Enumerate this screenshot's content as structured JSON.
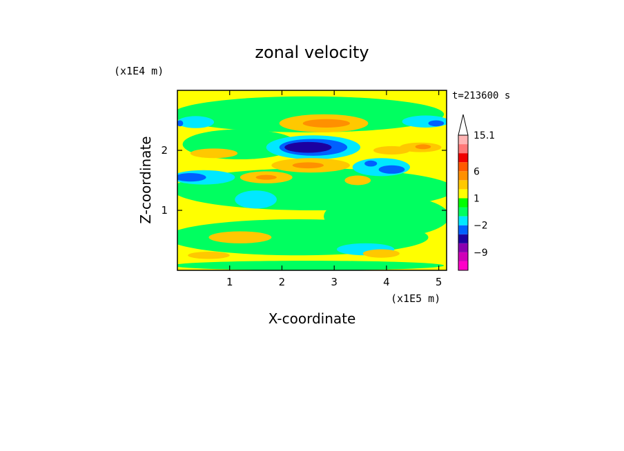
{
  "chart_data": {
    "type": "heatmap",
    "title": "zonal velocity",
    "xlabel": "X-coordinate",
    "ylabel": "Z-coordinate",
    "x_unit": "(x1E5 m)",
    "y_unit": "(x1E4 m)",
    "time_label": "t=213600 s",
    "xlim": [
      0,
      5.15
    ],
    "ylim": [
      0,
      3.0
    ],
    "x_ticks": [
      1,
      2,
      3,
      4,
      5
    ],
    "y_ticks": [
      1,
      2
    ],
    "background_color": "#ffff00",
    "colorbar": {
      "levels_low_to_high": [
        -15,
        -12,
        -9,
        -6,
        -3,
        -2,
        -1,
        0,
        1,
        2,
        3,
        6,
        9,
        12,
        15.1
      ],
      "colors_low_to_high": [
        "#ff00c8",
        "#d000b8",
        "#8a00b0",
        "#1c00a0",
        "#0060ff",
        "#00e8ff",
        "#00ff60",
        "#00ff00",
        "#ffff00",
        "#ffc800",
        "#ff9000",
        "#ff5a00",
        "#f00000",
        "#ff7878",
        "#ffb4b4"
      ],
      "tick_labels": [
        "15.1",
        "6",
        "1",
        "−2",
        "−9"
      ],
      "extend": "max"
    },
    "features": [
      {
        "kind": "green band",
        "x": 2.5,
        "z": 2.6,
        "rx": 2.6,
        "rz": 0.3,
        "level": "green"
      },
      {
        "kind": "green band",
        "x": 2.6,
        "z": 1.35,
        "rx": 2.7,
        "rz": 0.35,
        "level": "green"
      },
      {
        "kind": "green band",
        "x": 2.3,
        "z": 0.55,
        "rx": 2.5,
        "rz": 0.3,
        "level": "green"
      },
      {
        "kind": "green band",
        "x": 1.2,
        "z": 2.1,
        "rx": 1.1,
        "rz": 0.25,
        "level": "green"
      },
      {
        "kind": "green band",
        "x": 4.0,
        "z": 0.9,
        "rx": 1.2,
        "rz": 0.35,
        "level": "green"
      },
      {
        "kind": "green band",
        "x": 2.5,
        "z": 0.08,
        "rx": 2.6,
        "rz": 0.08,
        "level": "green"
      },
      {
        "kind": "cyan",
        "x": 0.35,
        "z": 2.47,
        "rx": 0.35,
        "rz": 0.1,
        "level": "cyan"
      },
      {
        "kind": "cyan",
        "x": 4.75,
        "z": 2.48,
        "rx": 0.45,
        "rz": 0.1,
        "level": "cyan"
      },
      {
        "kind": "cyan",
        "x": 1.5,
        "z": 1.18,
        "rx": 0.4,
        "rz": 0.15,
        "level": "cyan"
      },
      {
        "kind": "cyan",
        "x": 3.9,
        "z": 1.72,
        "rx": 0.55,
        "rz": 0.15,
        "level": "cyan"
      },
      {
        "kind": "cyan",
        "x": 3.6,
        "z": 0.35,
        "rx": 0.55,
        "rz": 0.1,
        "level": "cyan"
      },
      {
        "kind": "cyan",
        "x": 2.6,
        "z": 2.05,
        "rx": 0.9,
        "rz": 0.2,
        "level": "cyan"
      },
      {
        "kind": "cyan",
        "x": 0.5,
        "z": 1.55,
        "rx": 0.6,
        "rz": 0.12,
        "level": "cyan"
      },
      {
        "kind": "blue",
        "x": 2.6,
        "z": 2.05,
        "rx": 0.65,
        "rz": 0.14,
        "level": "blue"
      },
      {
        "kind": "navy",
        "x": 2.5,
        "z": 2.05,
        "rx": 0.45,
        "rz": 0.09,
        "level": "navy"
      },
      {
        "kind": "blue",
        "x": 0.25,
        "z": 1.55,
        "rx": 0.3,
        "rz": 0.07,
        "level": "blue"
      },
      {
        "kind": "blue",
        "x": 4.1,
        "z": 1.68,
        "rx": 0.25,
        "rz": 0.07,
        "level": "blue"
      },
      {
        "kind": "blue",
        "x": 3.7,
        "z": 1.78,
        "rx": 0.12,
        "rz": 0.05,
        "level": "blue"
      },
      {
        "kind": "blue",
        "x": 4.95,
        "z": 2.45,
        "rx": 0.15,
        "rz": 0.05,
        "level": "blue"
      },
      {
        "kind": "blue",
        "x": 0.05,
        "z": 2.45,
        "rx": 0.06,
        "rz": 0.05,
        "level": "blue"
      },
      {
        "kind": "orange",
        "x": 2.8,
        "z": 2.45,
        "rx": 0.85,
        "rz": 0.15,
        "level": "orange"
      },
      {
        "kind": "orange",
        "x": 2.55,
        "z": 1.75,
        "rx": 0.75,
        "rz": 0.12,
        "level": "orange"
      },
      {
        "kind": "orange",
        "x": 1.7,
        "z": 1.55,
        "rx": 0.5,
        "rz": 0.1,
        "level": "orange"
      },
      {
        "kind": "orange",
        "x": 4.1,
        "z": 2.0,
        "rx": 0.35,
        "rz": 0.07,
        "level": "orange"
      },
      {
        "kind": "orange",
        "x": 4.65,
        "z": 2.05,
        "rx": 0.4,
        "rz": 0.08,
        "level": "orange"
      },
      {
        "kind": "orange",
        "x": 3.45,
        "z": 1.5,
        "rx": 0.25,
        "rz": 0.08,
        "level": "orange"
      },
      {
        "kind": "orange",
        "x": 0.7,
        "z": 1.95,
        "rx": 0.45,
        "rz": 0.08,
        "level": "orange"
      },
      {
        "kind": "dark-orange",
        "x": 2.85,
        "z": 2.45,
        "rx": 0.45,
        "rz": 0.07,
        "level": "dark-orange"
      },
      {
        "kind": "dark-orange",
        "x": 2.5,
        "z": 1.75,
        "rx": 0.3,
        "rz": 0.05,
        "level": "dark-orange"
      },
      {
        "kind": "dark-orange",
        "x": 4.7,
        "z": 2.06,
        "rx": 0.15,
        "rz": 0.04,
        "level": "dark-orange"
      },
      {
        "kind": "dark-orange",
        "x": 1.7,
        "z": 1.55,
        "rx": 0.2,
        "rz": 0.04,
        "level": "dark-orange"
      },
      {
        "kind": "orange",
        "x": 1.2,
        "z": 0.55,
        "rx": 0.6,
        "rz": 0.1,
        "level": "orange"
      },
      {
        "kind": "orange",
        "x": 3.9,
        "z": 0.28,
        "rx": 0.35,
        "rz": 0.07,
        "level": "orange"
      },
      {
        "kind": "orange",
        "x": 0.6,
        "z": 0.25,
        "rx": 0.4,
        "rz": 0.06,
        "level": "orange"
      }
    ]
  },
  "colors": {
    "green": "#00ff60",
    "cyan": "#00e8ff",
    "blue": "#0060ff",
    "navy": "#1c00a0",
    "orange": "#ffc800",
    "dark-orange": "#ff9000"
  }
}
